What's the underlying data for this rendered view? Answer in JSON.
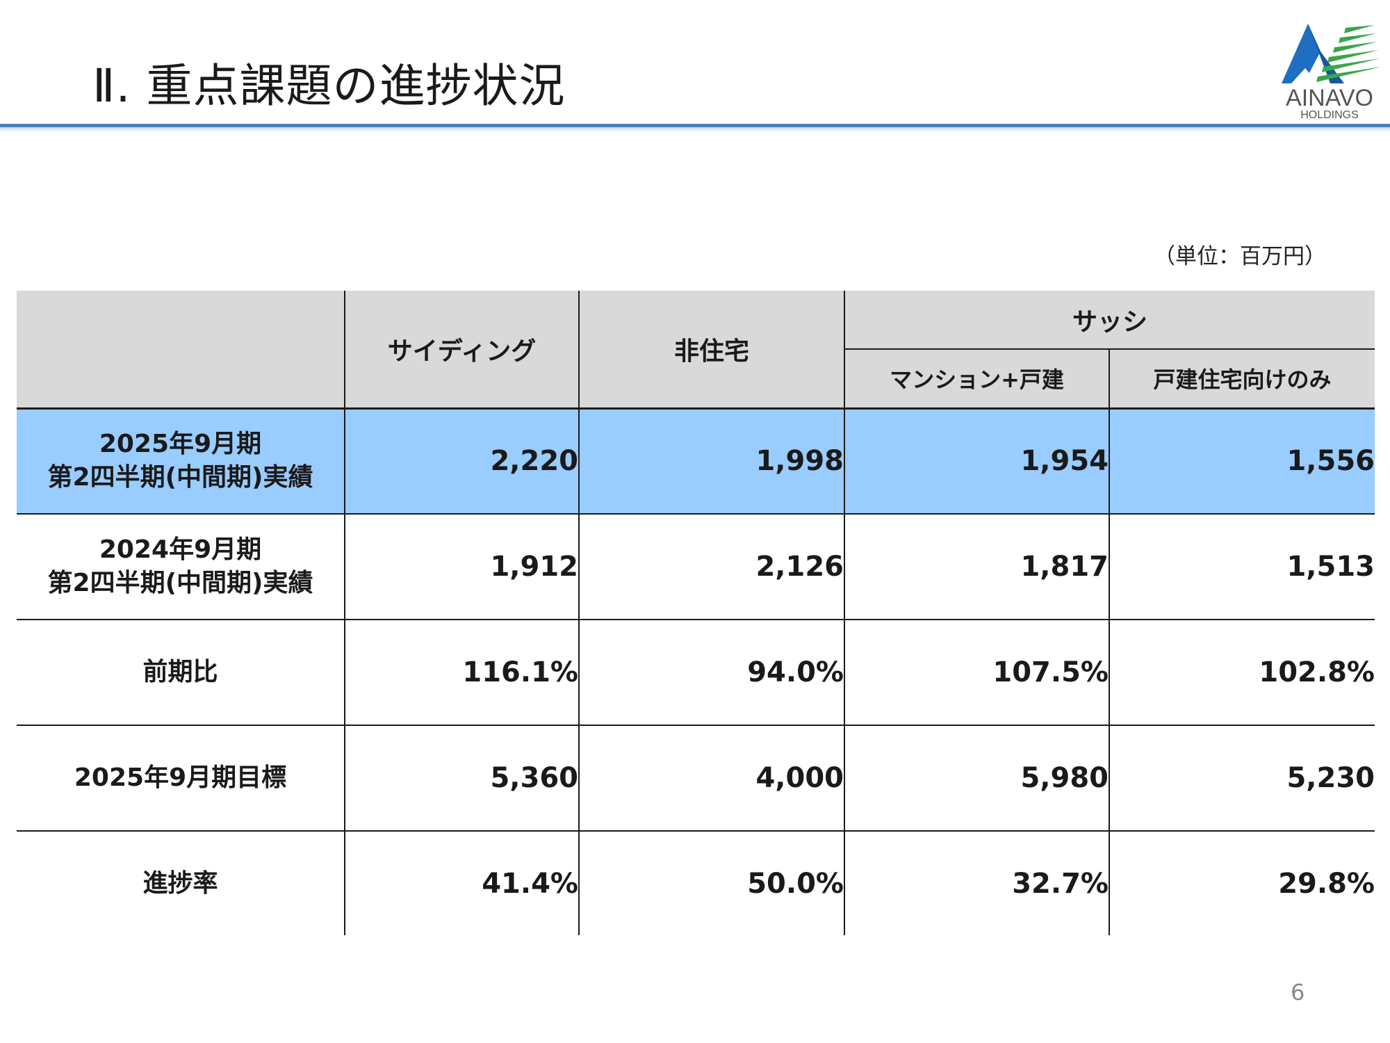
{
  "slide": {
    "title": "Ⅱ. 重点課題の進捗状況",
    "unit": "（単位：百万円）",
    "page_number": "6",
    "accent_color": "#4a7ec0",
    "highlight_row_color": "#99ccff",
    "header_bg_color": "#d9d9d9"
  },
  "logo": {
    "name": "AINAVO",
    "sub": "HOLDINGS",
    "icon": "ainavo-logo-icon"
  },
  "table": {
    "headers": {
      "siding": "サイディング",
      "non_residential": "非住宅",
      "sash": "サッシ",
      "sash_mansion": "マンション+戸建",
      "sash_detached": "戸建住宅向けのみ"
    },
    "rows": [
      {
        "label_line1": "2025年9月期",
        "label_line2": "第2四半期(中間期)実績",
        "values": [
          "2,220",
          "1,998",
          "1,954",
          "1,556"
        ]
      },
      {
        "label_line1": "2024年9月期",
        "label_line2": "第2四半期(中間期)実績",
        "values": [
          "1,912",
          "2,126",
          "1,817",
          "1,513"
        ]
      },
      {
        "label_line1": "前期比",
        "values": [
          "116.1%",
          "94.0%",
          "107.5%",
          "102.8%"
        ]
      },
      {
        "label_line1": "2025年9月期目標",
        "values": [
          "5,360",
          "4,000",
          "5,980",
          "5,230"
        ]
      },
      {
        "label_line1": "進捗率",
        "values": [
          "41.4%",
          "50.0%",
          "32.7%",
          "29.8%"
        ]
      }
    ]
  }
}
